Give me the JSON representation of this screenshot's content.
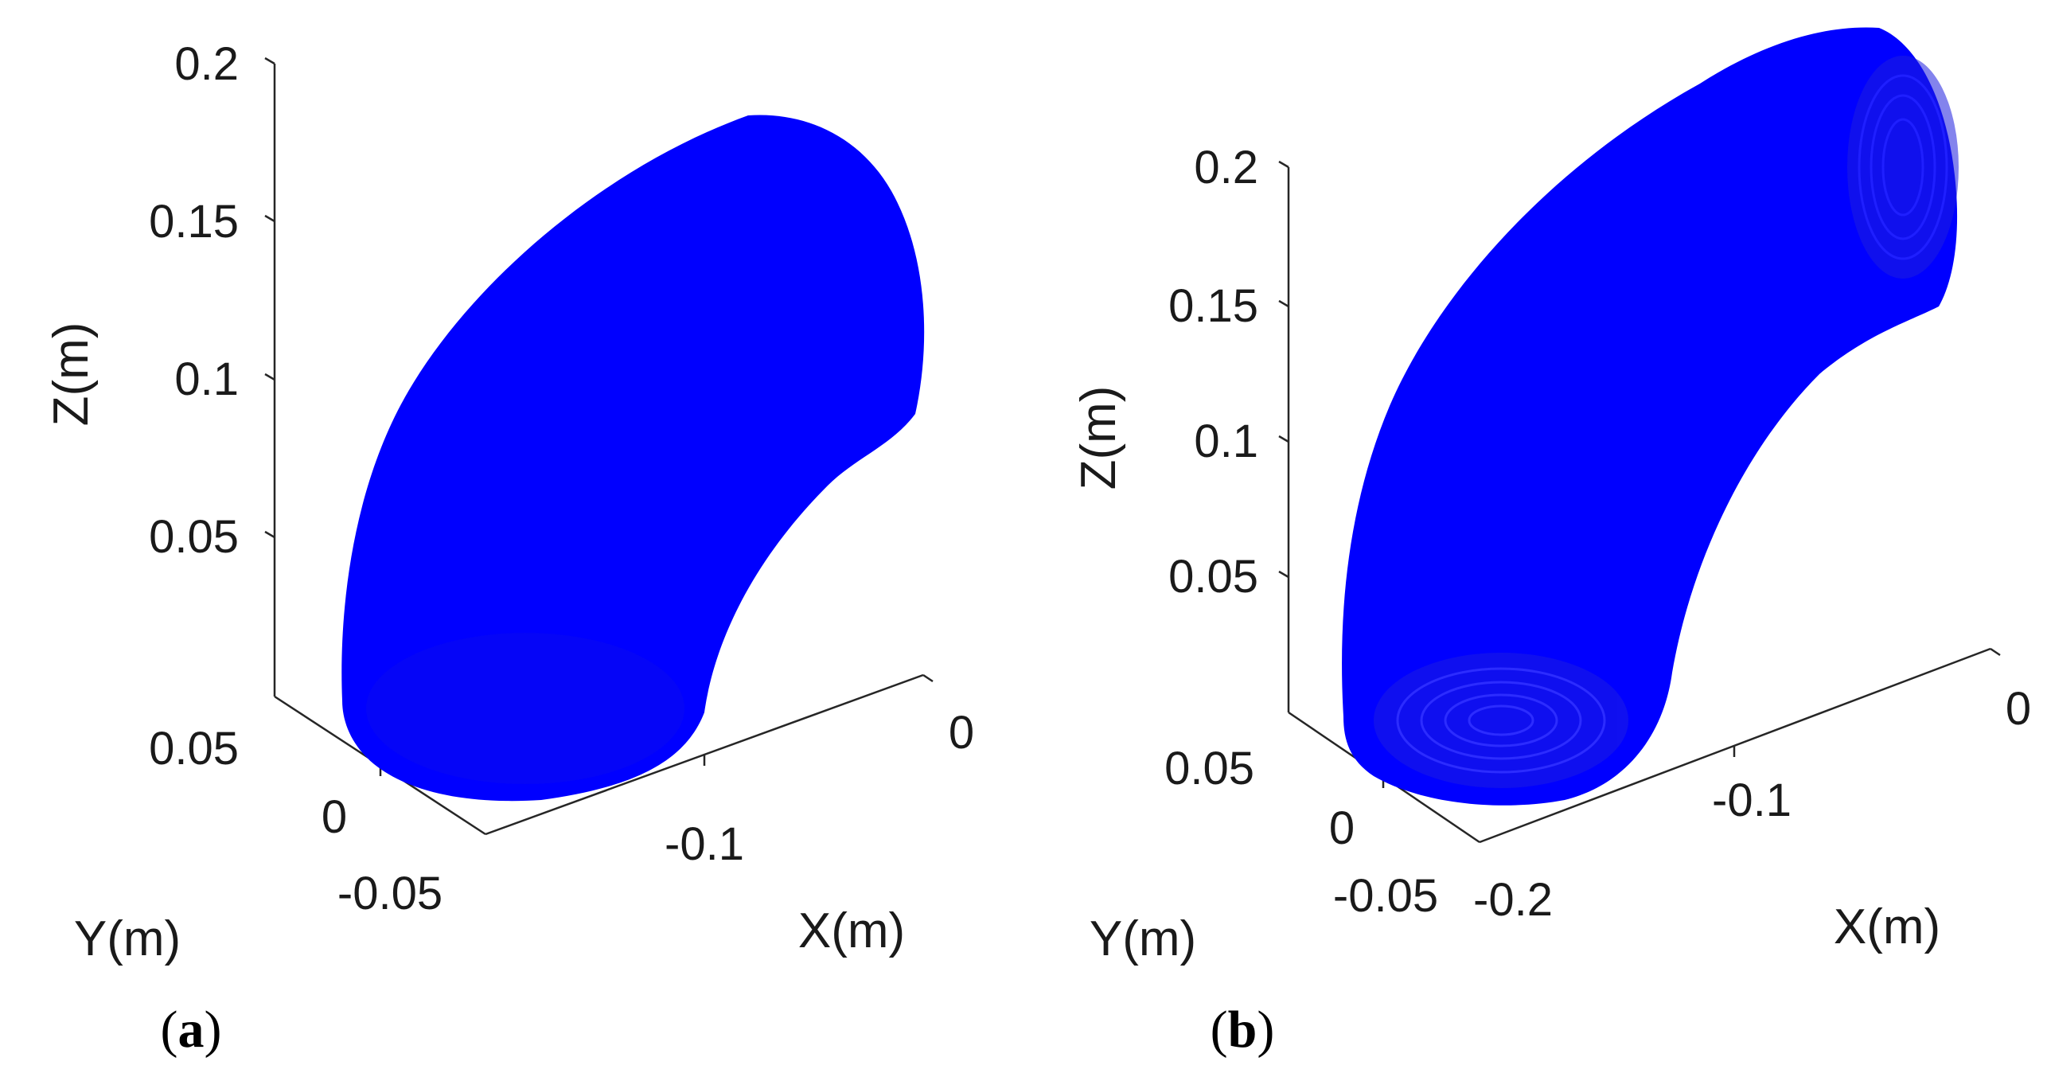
{
  "chart_data": [
    {
      "type": "surface3d",
      "panel_label": "a",
      "shape": "quarter-torus pipe elbow (90° bend)",
      "color": "#0000ff",
      "xlabel": "X(m)",
      "ylabel": "Y(m)",
      "zlabel": "Z(m)",
      "x_ticks": [
        "-0.1",
        "0"
      ],
      "y_ticks": [
        "0.05",
        "0",
        "-0.05"
      ],
      "z_ticks": [
        "0.05",
        "0.1",
        "0.15",
        "0.2"
      ],
      "xlim": [
        -0.15,
        0
      ],
      "ylim": [
        -0.05,
        0.05
      ],
      "zlim": [
        0,
        0.2
      ],
      "grid": false
    },
    {
      "type": "surface3d",
      "panel_label": "b",
      "shape": "quarter-torus pipe elbow (90° bend)",
      "color": "#0000ff",
      "xlabel": "X(m)",
      "ylabel": "Y(m)",
      "zlabel": "Z(m)",
      "x_ticks": [
        "-0.2",
        "-0.1",
        "0"
      ],
      "y_ticks": [
        "0.05",
        "0",
        "-0.05"
      ],
      "z_ticks": [
        "0.05",
        "0.1",
        "0.15",
        "0.2"
      ],
      "xlim": [
        -0.2,
        0
      ],
      "ylim": [
        -0.05,
        0.05
      ],
      "zlim": [
        0,
        0.2
      ],
      "grid": false
    }
  ]
}
